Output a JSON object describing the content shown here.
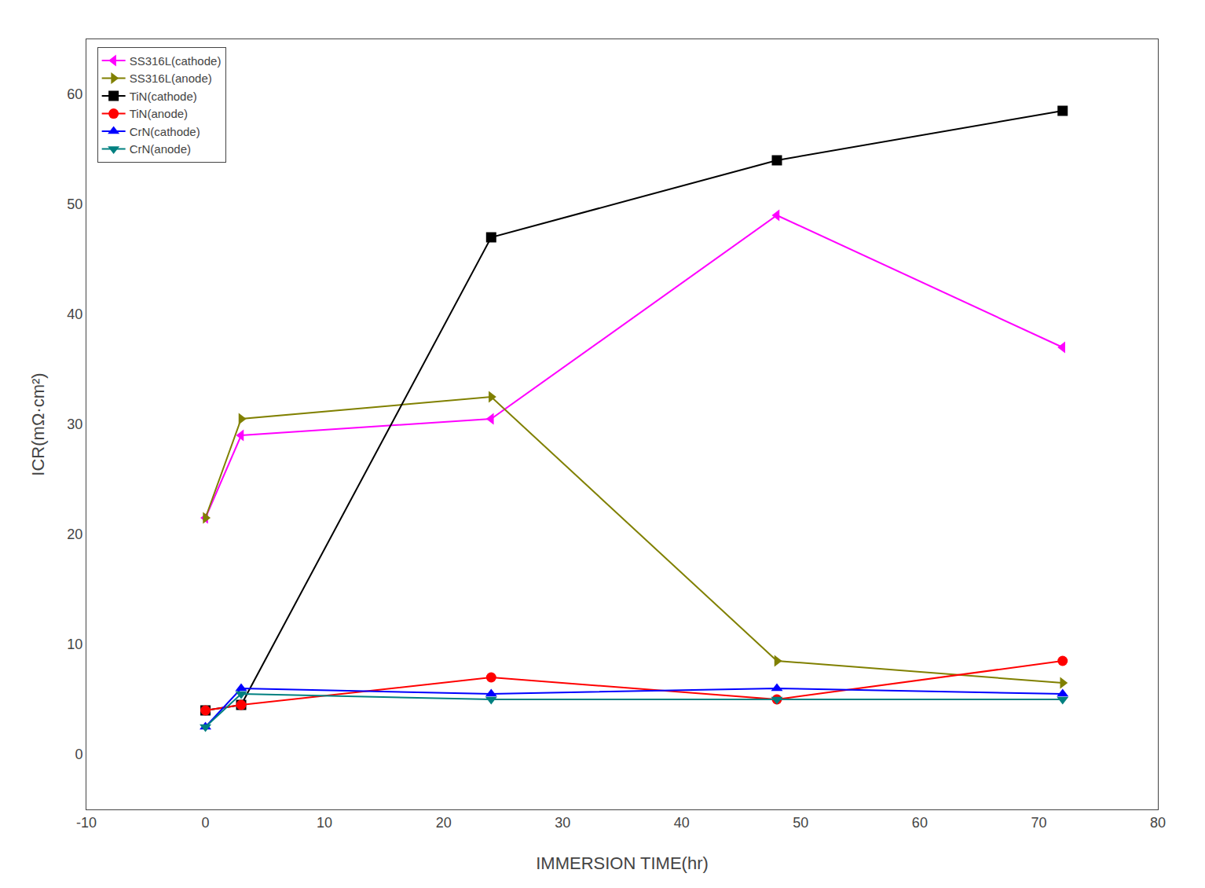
{
  "chart_data": {
    "type": "line",
    "x_label": "IMMERSION TIME(hr)",
    "y_label": "ICR(mΩ·cm²)",
    "x": [
      0,
      3,
      24,
      48,
      72
    ],
    "series": [
      {
        "name": "SS316L(cathode)",
        "color": "#FF00FF",
        "marker": "triangle-left",
        "values": [
          21.5,
          29.0,
          30.5,
          49.0,
          37.0
        ]
      },
      {
        "name": "SS316L(anode)",
        "color": "#808000",
        "marker": "triangle-right",
        "values": [
          21.5,
          30.5,
          32.5,
          8.5,
          6.5
        ]
      },
      {
        "name": "TiN(cathode)",
        "color": "#000000",
        "marker": "square",
        "values": [
          4.0,
          4.5,
          47.0,
          54.0,
          58.5
        ]
      },
      {
        "name": "TiN(anode)",
        "color": "#FF0000",
        "marker": "circle",
        "values": [
          4.0,
          4.5,
          7.0,
          5.0,
          8.5
        ]
      },
      {
        "name": "CrN(cathode)",
        "color": "#0000FF",
        "marker": "triangle-up",
        "values": [
          2.5,
          6.0,
          5.5,
          6.0,
          5.5
        ]
      },
      {
        "name": "CrN(anode)",
        "color": "#008080",
        "marker": "triangle-down",
        "values": [
          2.5,
          5.5,
          5.0,
          5.0,
          5.0
        ]
      }
    ],
    "xlim": [
      -10,
      80
    ],
    "ylim": [
      -5,
      65
    ],
    "xticks": [
      -10,
      0,
      10,
      20,
      30,
      40,
      50,
      60,
      70,
      80
    ],
    "yticks": [
      0,
      10,
      20,
      30,
      40,
      50,
      60
    ],
    "grid": false,
    "legend": "upper left"
  }
}
